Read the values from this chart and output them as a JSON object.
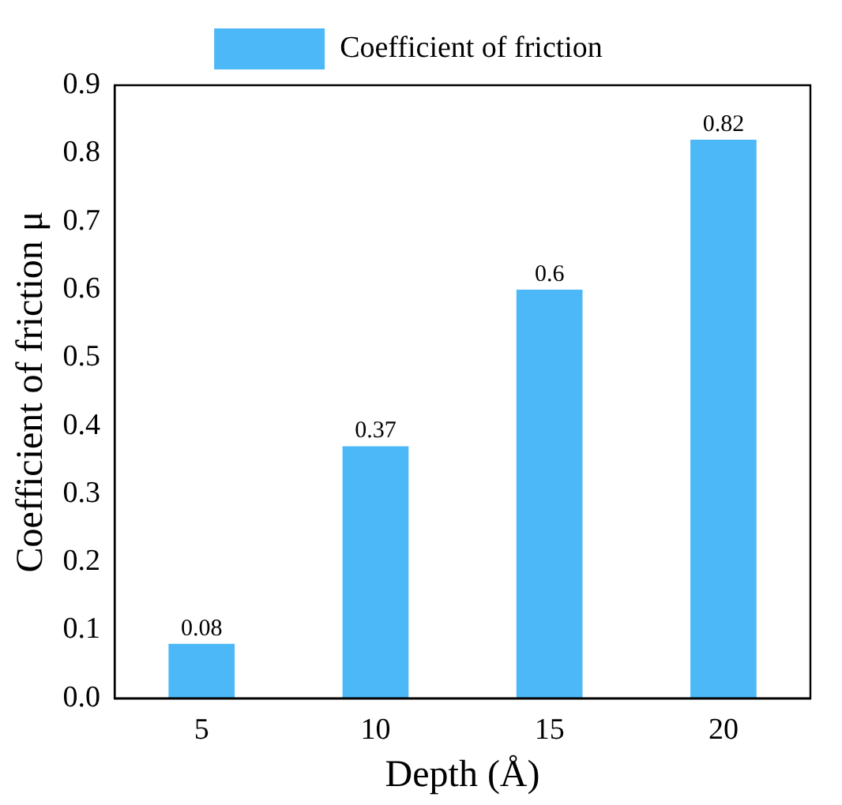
{
  "chart_data": {
    "type": "bar",
    "xlabel": "Depth (Å)",
    "ylabel": "Coefficient of friction μ",
    "categories": [
      "5",
      "10",
      "15",
      "20"
    ],
    "series": [
      {
        "name": "Coefficient of friction",
        "color": "#4db8f8",
        "values": [
          0.08,
          0.37,
          0.6,
          0.82
        ]
      }
    ],
    "ylim": [
      0,
      0.9
    ],
    "yticks": [
      {
        "value": 0,
        "label": "0.0"
      },
      0.1,
      0.2,
      0.3,
      0.4,
      0.5,
      0.6,
      0.7,
      0.8,
      0.9
    ],
    "data_labels": true,
    "legend": "top"
  }
}
